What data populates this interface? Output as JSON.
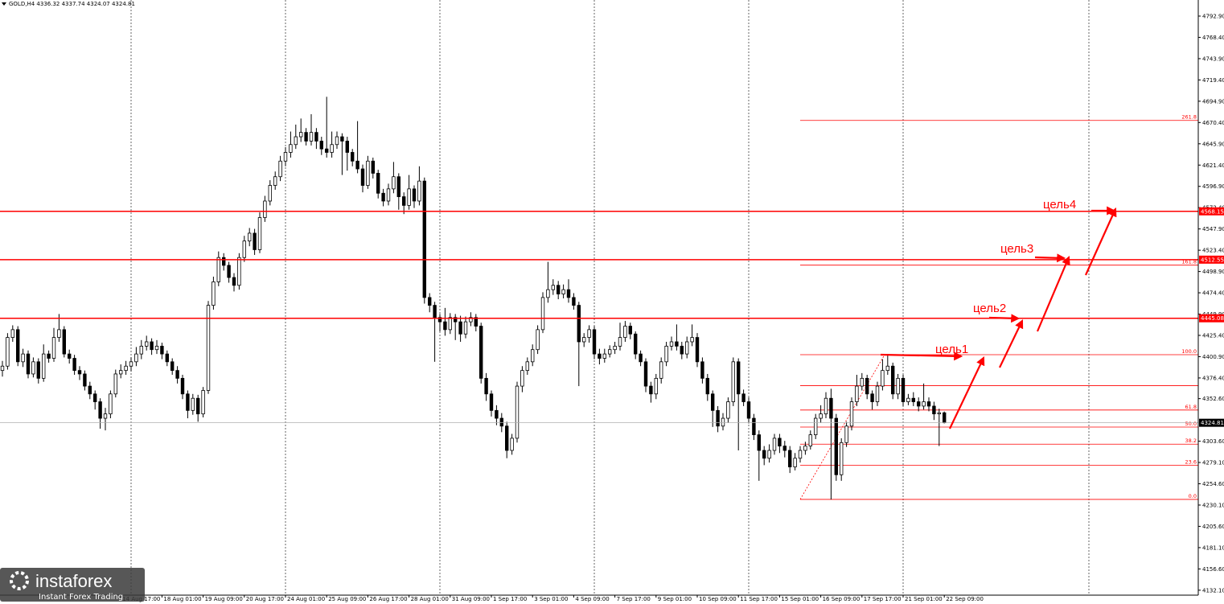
{
  "chart_data": {
    "type": "candlestick",
    "title": "GOLD,H4",
    "ylim": [
      4126.4,
      4811.4
    ],
    "yticks": [
      {
        "value": 4792.9,
        "label": "4792.90"
      },
      {
        "value": 4768.4,
        "label": "4768.40"
      },
      {
        "value": 4743.9,
        "label": "4743.90"
      },
      {
        "value": 4719.4,
        "label": "4719.40"
      },
      {
        "value": 4694.9,
        "label": "4694.90"
      },
      {
        "value": 4670.4,
        "label": "4670.40"
      },
      {
        "value": 4645.9,
        "label": "4645.90"
      },
      {
        "value": 4621.4,
        "label": "4621.40"
      },
      {
        "value": 4596.9,
        "label": "4596.90"
      },
      {
        "value": 4572.4,
        "label": "4572.40"
      },
      {
        "value": 4547.9,
        "label": "4547.90"
      },
      {
        "value": 4523.4,
        "label": "4523.40"
      },
      {
        "value": 4498.9,
        "label": "4498.90"
      },
      {
        "value": 4474.4,
        "label": "4474.40"
      },
      {
        "value": 4449.9,
        "label": "4449.90"
      },
      {
        "value": 4425.4,
        "label": "4425.40"
      },
      {
        "value": 4400.9,
        "label": "4400.90"
      },
      {
        "value": 4376.4,
        "label": "4376.40"
      },
      {
        "value": 4352.6,
        "label": "4352.60"
      },
      {
        "value": 4303.6,
        "label": "4303.60"
      },
      {
        "value": 4279.1,
        "label": "4279.10"
      },
      {
        "value": 4254.6,
        "label": "4254.60"
      },
      {
        "value": 4230.1,
        "label": "4230.10"
      },
      {
        "value": 4205.6,
        "label": "4205.60"
      },
      {
        "value": 4181.1,
        "label": "4181.10"
      },
      {
        "value": 4156.6,
        "label": "4156.60"
      },
      {
        "value": 4132.1,
        "label": "4132.10"
      }
    ],
    "categories": [
      null,
      null,
      null,
      null,
      null,
      null,
      null,
      null,
      null,
      null,
      null,
      null,
      null,
      null,
      null,
      null,
      null,
      null,
      null,
      null,
      null,
      null,
      null,
      "14 Aug 17:00",
      null,
      null,
      null,
      null,
      null,
      null,
      null,
      "18 Aug 01:00",
      null,
      null,
      null,
      null,
      null,
      null,
      null,
      "19 Aug 09:00",
      null,
      null,
      null,
      null,
      null,
      null,
      null,
      "20 Aug 17:00",
      null,
      null,
      null,
      null,
      null,
      null,
      null,
      "24 Aug 01:00",
      null,
      null,
      null,
      null,
      null,
      null,
      null,
      "25 Aug 09:00",
      null,
      null,
      null,
      null,
      null,
      null,
      null,
      "26 Aug 17:00",
      null,
      null,
      null,
      null,
      null,
      null,
      null,
      "28 Aug 01:00",
      null,
      null,
      null,
      null,
      null,
      null,
      null,
      "31 Aug 09:00",
      null,
      null,
      null,
      null,
      null,
      null,
      null,
      "1 Sep 17:00",
      null,
      null,
      null,
      null,
      null,
      null,
      null,
      "3 Sep 01:00",
      null,
      null,
      null,
      null,
      null,
      null,
      null,
      "4 Sep 09:00",
      null,
      null,
      null,
      null,
      null,
      null,
      null,
      "7 Sep 17:00",
      null,
      null,
      null,
      null,
      null,
      null,
      null,
      "9 Sep 01:00",
      null,
      null,
      null,
      null,
      null,
      null,
      null,
      "10 Sep 09:00",
      null,
      null,
      null,
      null,
      null,
      null,
      null,
      "11 Sep 17:00",
      null,
      null,
      null,
      null,
      null,
      null,
      null,
      "15 Sep 01:00",
      null,
      null,
      null,
      null,
      null,
      null,
      null,
      "16 Sep 09:00",
      null,
      null,
      null,
      null,
      null,
      null,
      null,
      "17 Sep 17:00",
      null,
      null,
      null,
      null,
      null,
      null,
      null,
      "21 Sep 01:00",
      null,
      null,
      null,
      null,
      null,
      null,
      null,
      "22 Sep 09:00"
    ],
    "ohlc": [
      [
        4385,
        4396,
        4378,
        4390
      ],
      [
        4390,
        4428,
        4386,
        4423
      ],
      [
        4423,
        4437,
        4418,
        4432
      ],
      [
        4432,
        4436,
        4390,
        4395
      ],
      [
        4395,
        4410,
        4389,
        4404
      ],
      [
        4404,
        4408,
        4376,
        4381
      ],
      [
        4381,
        4400,
        4377,
        4395
      ],
      [
        4395,
        4399,
        4370,
        4376
      ],
      [
        4376,
        4415,
        4372,
        4404
      ],
      [
        4404,
        4408,
        4394,
        4399
      ],
      [
        4399,
        4434,
        4395,
        4423
      ],
      [
        4423,
        4450,
        4418,
        4432
      ],
      [
        4432,
        4436,
        4400,
        4404
      ],
      [
        4404,
        4409,
        4393,
        4399
      ],
      [
        4399,
        4403,
        4380,
        4385
      ],
      [
        4385,
        4390,
        4374,
        4381
      ],
      [
        4381,
        4385,
        4362,
        4367
      ],
      [
        4367,
        4372,
        4352,
        4358
      ],
      [
        4358,
        4362,
        4340,
        4349
      ],
      [
        4349,
        4353,
        4318,
        4330
      ],
      [
        4330,
        4342,
        4316,
        4335
      ],
      [
        4335,
        4362,
        4330,
        4358
      ],
      [
        4358,
        4386,
        4354,
        4381
      ],
      [
        4381,
        4392,
        4376,
        4385
      ],
      [
        4385,
        4396,
        4380,
        4390
      ],
      [
        4390,
        4400,
        4384,
        4395
      ],
      [
        4395,
        4412,
        4390,
        4404
      ],
      [
        4404,
        4420,
        4398,
        4413
      ],
      [
        4413,
        4425,
        4408,
        4418
      ],
      [
        4418,
        4422,
        4403,
        4409
      ],
      [
        4409,
        4420,
        4404,
        4413
      ],
      [
        4413,
        4417,
        4398,
        4404
      ],
      [
        4404,
        4408,
        4390,
        4395
      ],
      [
        4395,
        4399,
        4380,
        4385
      ],
      [
        4385,
        4390,
        4370,
        4376
      ],
      [
        4376,
        4380,
        4352,
        4358
      ],
      [
        4358,
        4362,
        4330,
        4339
      ],
      [
        4339,
        4358,
        4334,
        4353
      ],
      [
        4353,
        4357,
        4326,
        4335
      ],
      [
        4335,
        4366,
        4331,
        4362
      ],
      [
        4362,
        4465,
        4358,
        4460
      ],
      [
        4460,
        4493,
        4455,
        4487
      ],
      [
        4487,
        4522,
        4482,
        4515
      ],
      [
        4515,
        4520,
        4500,
        4506
      ],
      [
        4506,
        4510,
        4486,
        4492
      ],
      [
        4492,
        4497,
        4476,
        4483
      ],
      [
        4483,
        4520,
        4478,
        4515
      ],
      [
        4515,
        4540,
        4510,
        4534
      ],
      [
        4534,
        4549,
        4528,
        4543
      ],
      [
        4543,
        4548,
        4518,
        4524
      ],
      [
        4524,
        4567,
        4520,
        4561
      ],
      [
        4561,
        4586,
        4556,
        4580
      ],
      [
        4580,
        4604,
        4575,
        4598
      ],
      [
        4598,
        4614,
        4593,
        4608
      ],
      [
        4608,
        4632,
        4603,
        4626
      ],
      [
        4626,
        4642,
        4620,
        4636
      ],
      [
        4636,
        4660,
        4630,
        4645
      ],
      [
        4645,
        4668,
        4640,
        4654
      ],
      [
        4654,
        4675,
        4648,
        4659
      ],
      [
        4659,
        4664,
        4644,
        4649
      ],
      [
        4649,
        4680,
        4644,
        4659
      ],
      [
        4659,
        4664,
        4640,
        4649
      ],
      [
        4649,
        4654,
        4633,
        4640
      ],
      [
        4640,
        4700,
        4630,
        4636
      ],
      [
        4636,
        4660,
        4630,
        4645
      ],
      [
        4645,
        4660,
        4640,
        4654
      ],
      [
        4654,
        4658,
        4610,
        4649
      ],
      [
        4649,
        4654,
        4615,
        4636
      ],
      [
        4636,
        4640,
        4620,
        4626
      ],
      [
        4626,
        4672,
        4612,
        4617
      ],
      [
        4617,
        4622,
        4590,
        4598
      ],
      [
        4598,
        4632,
        4594,
        4626
      ],
      [
        4626,
        4630,
        4606,
        4612
      ],
      [
        4612,
        4616,
        4583,
        4589
      ],
      [
        4589,
        4594,
        4574,
        4580
      ],
      [
        4580,
        4600,
        4575,
        4594
      ],
      [
        4594,
        4625,
        4589,
        4608
      ],
      [
        4608,
        4612,
        4570,
        4585
      ],
      [
        4585,
        4590,
        4565,
        4575
      ],
      [
        4575,
        4610,
        4570,
        4594
      ],
      [
        4594,
        4598,
        4572,
        4580
      ],
      [
        4580,
        4620,
        4575,
        4603
      ],
      [
        4603,
        4607,
        4462,
        4469
      ],
      [
        4469,
        4474,
        4452,
        4460
      ],
      [
        4460,
        4464,
        4395,
        4446
      ],
      [
        4446,
        4450,
        4430,
        4441
      ],
      [
        4441,
        4457,
        4425,
        4432
      ],
      [
        4432,
        4451,
        4427,
        4446
      ],
      [
        4446,
        4450,
        4420,
        4441
      ],
      [
        4441,
        4448,
        4418,
        4427
      ],
      [
        4427,
        4447,
        4422,
        4441
      ],
      [
        4441,
        4452,
        4436,
        4446
      ],
      [
        4446,
        4450,
        4430,
        4436
      ],
      [
        4436,
        4440,
        4370,
        4376
      ],
      [
        4376,
        4382,
        4350,
        4358
      ],
      [
        4358,
        4362,
        4332,
        4339
      ],
      [
        4339,
        4345,
        4322,
        4330
      ],
      [
        4330,
        4336,
        4314,
        4321
      ],
      [
        4321,
        4326,
        4284,
        4293
      ],
      [
        4293,
        4312,
        4288,
        4307
      ],
      [
        4307,
        4372,
        4302,
        4367
      ],
      [
        4367,
        4390,
        4360,
        4385
      ],
      [
        4385,
        4400,
        4380,
        4395
      ],
      [
        4395,
        4415,
        4390,
        4409
      ],
      [
        4409,
        4437,
        4404,
        4432
      ],
      [
        4432,
        4475,
        4428,
        4469
      ],
      [
        4469,
        4510,
        4463,
        4478
      ],
      [
        4478,
        4490,
        4472,
        4483
      ],
      [
        4483,
        4488,
        4467,
        4473
      ],
      [
        4473,
        4484,
        4468,
        4478
      ],
      [
        4478,
        4490,
        4463,
        4469
      ],
      [
        4469,
        4474,
        4455,
        4460
      ],
      [
        4460,
        4464,
        4367,
        4418
      ],
      [
        4418,
        4428,
        4412,
        4423
      ],
      [
        4423,
        4437,
        4417,
        4432
      ],
      [
        4432,
        4436,
        4398,
        4404
      ],
      [
        4404,
        4410,
        4392,
        4399
      ],
      [
        4399,
        4410,
        4394,
        4404
      ],
      [
        4404,
        4414,
        4400,
        4409
      ],
      [
        4409,
        4418,
        4404,
        4413
      ],
      [
        4413,
        4440,
        4408,
        4423
      ],
      [
        4423,
        4442,
        4418,
        4436
      ],
      [
        4436,
        4440,
        4421,
        4427
      ],
      [
        4427,
        4430,
        4398,
        4404
      ],
      [
        4404,
        4408,
        4390,
        4395
      ],
      [
        4395,
        4399,
        4360,
        4367
      ],
      [
        4367,
        4372,
        4348,
        4358
      ],
      [
        4358,
        4381,
        4352,
        4376
      ],
      [
        4376,
        4400,
        4370,
        4395
      ],
      [
        4395,
        4418,
        4390,
        4413
      ],
      [
        4413,
        4424,
        4408,
        4418
      ],
      [
        4418,
        4438,
        4408,
        4413
      ],
      [
        4413,
        4418,
        4398,
        4404
      ],
      [
        4404,
        4424,
        4399,
        4418
      ],
      [
        4418,
        4438,
        4413,
        4423
      ],
      [
        4423,
        4428,
        4389,
        4395
      ],
      [
        4395,
        4400,
        4370,
        4376
      ],
      [
        4376,
        4381,
        4350,
        4358
      ],
      [
        4358,
        4362,
        4320,
        4339
      ],
      [
        4339,
        4344,
        4314,
        4321
      ],
      [
        4321,
        4336,
        4316,
        4330
      ],
      [
        4330,
        4354,
        4325,
        4349
      ],
      [
        4349,
        4400,
        4344,
        4395
      ],
      [
        4395,
        4399,
        4293,
        4358
      ],
      [
        4358,
        4363,
        4344,
        4349
      ],
      [
        4349,
        4354,
        4324,
        4330
      ],
      [
        4330,
        4335,
        4305,
        4311
      ],
      [
        4311,
        4316,
        4258,
        4293
      ],
      [
        4293,
        4298,
        4276,
        4284
      ],
      [
        4284,
        4300,
        4279,
        4293
      ],
      [
        4293,
        4312,
        4288,
        4307
      ],
      [
        4307,
        4312,
        4290,
        4298
      ],
      [
        4298,
        4304,
        4285,
        4293
      ],
      [
        4293,
        4298,
        4267,
        4274
      ],
      [
        4274,
        4290,
        4270,
        4284
      ],
      [
        4284,
        4298,
        4279,
        4293
      ],
      [
        4293,
        4303,
        4288,
        4298
      ],
      [
        4298,
        4316,
        4294,
        4311
      ],
      [
        4311,
        4335,
        4306,
        4330
      ],
      [
        4330,
        4345,
        4325,
        4335
      ],
      [
        4335,
        4360,
        4330,
        4353
      ],
      [
        4353,
        4364,
        4236.6,
        4330
      ],
      [
        4330,
        4335,
        4258,
        4265
      ],
      [
        4265,
        4307,
        4258,
        4302
      ],
      [
        4302,
        4326,
        4297,
        4321
      ],
      [
        4321,
        4354,
        4316,
        4349
      ],
      [
        4349,
        4380,
        4344,
        4367
      ],
      [
        4367,
        4382,
        4362,
        4376
      ],
      [
        4376,
        4380,
        4352,
        4358
      ],
      [
        4358,
        4362,
        4340,
        4349
      ],
      [
        4349,
        4372,
        4344,
        4367
      ],
      [
        4367,
        4398,
        4362,
        4385
      ],
      [
        4385,
        4403.2,
        4380,
        4390
      ],
      [
        4390,
        4394,
        4352,
        4358
      ],
      [
        4358,
        4381,
        4352,
        4376
      ],
      [
        4376,
        4380,
        4344,
        4349
      ],
      [
        4349,
        4358,
        4345,
        4353
      ],
      [
        4353,
        4360,
        4344,
        4349
      ],
      [
        4349,
        4354,
        4338,
        4344
      ],
      [
        4344,
        4370,
        4340,
        4349
      ],
      [
        4349,
        4354,
        4338,
        4344
      ],
      [
        4344,
        4349,
        4328,
        4335
      ],
      [
        4335,
        4341,
        4298,
        4336.32
      ],
      [
        4336.32,
        4337.74,
        4324.07,
        4324.81
      ]
    ],
    "bull_color": "#ffffff",
    "bear_color": "#000000",
    "levels": [
      {
        "value": 4568.15,
        "color": "#ff0000"
      },
      {
        "value": 4512.55,
        "color": "#ff0000"
      },
      {
        "value": 4445.08,
        "color": "#ff0000"
      }
    ],
    "fibo": {
      "color": "#ff0000",
      "levels": [
        {
          "label": "0.0",
          "price": 4236.6
        },
        {
          "label": "23.6",
          "price": 4275.9
        },
        {
          "label": "38.2",
          "price": 4300.2
        },
        {
          "label": "50.0",
          "price": 4319.9
        },
        {
          "label": "61.8",
          "price": 4339.5
        },
        {
          "price": 4367.5
        },
        {
          "label": "100.0",
          "price": 4403.2
        },
        {
          "label": "161.8",
          "price": 4506.2
        },
        {
          "label": "261.8",
          "price": 4672.8
        }
      ]
    },
    "annotations": [
      "цель1",
      "цель2",
      "цель3",
      "цель4"
    ]
  },
  "watermark": {
    "brand": "instaforex",
    "tagline": "Instant Forex Trading"
  }
}
